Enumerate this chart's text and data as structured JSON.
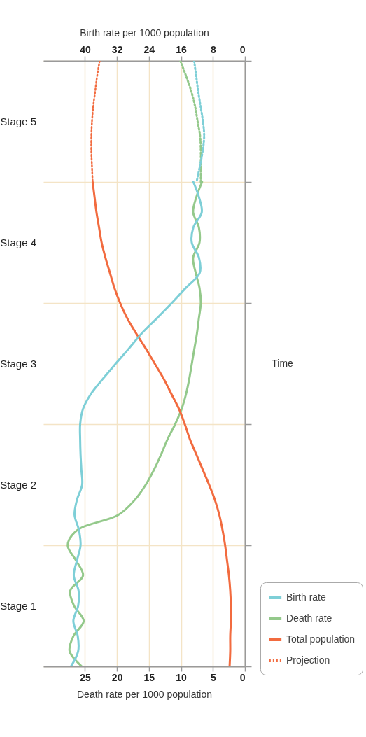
{
  "chart_data": {
    "type": "line",
    "orientation": "horizontal",
    "ylabel": "Time",
    "xlabel": "Death rate per 1000 population",
    "x2label": "Birth rate per 1000 population",
    "categories": [
      null,
      null,
      null,
      null,
      null,
      null,
      null,
      null,
      null,
      null,
      null,
      null,
      null,
      null,
      null,
      null,
      null,
      null,
      null,
      null,
      null,
      null,
      null,
      null,
      null,
      null,
      null,
      null,
      null,
      null,
      null,
      null,
      null,
      null,
      null,
      null,
      null,
      null,
      null,
      null,
      null
    ],
    "xlim": [
      31.5,
      0
    ],
    "xticks": [
      25,
      20,
      15,
      10,
      5,
      0
    ],
    "x2lim": [
      50.4,
      0
    ],
    "x2ticks": [
      40,
      32,
      24,
      16,
      8,
      0
    ],
    "grid": true,
    "legend": "bottom right",
    "annotations": [
      "Stage 5",
      "Stage 4",
      "Stage 3",
      "Stage 2",
      "Stage 1"
    ],
    "series": [
      {
        "name": "Birth rate",
        "color": "#7ecfd7",
        "axis": "x2",
        "values": [
          null,
          null,
          null,
          null,
          null,
          null,
          null,
          null,
          12.9,
          11.5,
          10.8,
          12.9,
          13.3,
          11.5,
          11.3,
          14.8,
          18.3,
          22.0,
          25.8,
          29.0,
          32.3,
          35.5,
          38.5,
          40.5,
          41.2,
          41.2,
          41.1,
          40.9,
          40.7,
          42.0,
          42.6,
          41.5,
          41.1,
          42.0,
          42.8,
          41.6,
          41.7,
          42.9,
          41.8,
          41.7,
          43.5
        ]
      },
      {
        "name": "Death rate",
        "color": "#94c98b",
        "values": [
          null,
          null,
          null,
          null,
          null,
          null,
          null,
          null,
          6.7,
          7.6,
          8.1,
          7.2,
          7.1,
          8.1,
          7.7,
          7.1,
          6.9,
          7.2,
          7.5,
          7.9,
          8.3,
          8.7,
          9.2,
          9.9,
          10.9,
          12.1,
          13.1,
          14.2,
          15.5,
          17.2,
          19.8,
          26.2,
          27.7,
          26.4,
          25.3,
          27.3,
          26.7,
          25.2,
          26.8,
          27.4,
          25.5
        ]
      },
      {
        "name": "Total population",
        "color": "#f26b3f",
        "values": [
          null,
          null,
          null,
          null,
          null,
          null,
          null,
          null,
          23.8,
          23.5,
          23.2,
          22.8,
          22.4,
          21.8,
          21.1,
          20.4,
          19.5,
          18.4,
          17.0,
          15.5,
          14.1,
          12.7,
          11.5,
          10.3,
          9.4,
          8.6,
          7.6,
          6.6,
          5.6,
          4.7,
          4.0,
          3.5,
          3.1,
          2.8,
          2.5,
          2.3,
          2.2,
          2.2,
          2.3,
          2.3,
          2.4
        ]
      },
      {
        "color": "#7ecfd7",
        "axis": "x2",
        "line_style": "dotted",
        "values": [
          12.7,
          12.2,
          11.7,
          11.1,
          10.5,
          10.2,
          10.6,
          11.3,
          12.1,
          null,
          null,
          null,
          null,
          null,
          null,
          null,
          null,
          null,
          null,
          null,
          null,
          null,
          null,
          null,
          null,
          null,
          null,
          null,
          null,
          null,
          null,
          null,
          null,
          null,
          null,
          null,
          null,
          null,
          null,
          null,
          null
        ]
      },
      {
        "color": "#94c98b",
        "line_style": "dotted",
        "values": [
          10.1,
          9.2,
          8.4,
          7.8,
          7.4,
          7.0,
          6.9,
          6.9,
          6.9,
          null,
          null,
          null,
          null,
          null,
          null,
          null,
          null,
          null,
          null,
          null,
          null,
          null,
          null,
          null,
          null,
          null,
          null,
          null,
          null,
          null,
          null,
          null,
          null,
          null,
          null,
          null,
          null,
          null,
          null,
          null,
          null
        ]
      },
      {
        "name": "Projection",
        "color": "#f26b3f",
        "line_style": "dotted",
        "values": [
          22.7,
          23.1,
          23.4,
          23.7,
          23.9,
          24.0,
          24.0,
          23.9,
          23.8,
          null,
          null,
          null,
          null,
          null,
          null,
          null,
          null,
          null,
          null,
          null,
          null,
          null,
          null,
          null,
          null,
          null,
          null,
          null,
          null,
          null,
          null,
          null,
          null,
          null,
          null,
          null,
          null,
          null,
          null,
          null,
          null
        ]
      }
    ]
  }
}
